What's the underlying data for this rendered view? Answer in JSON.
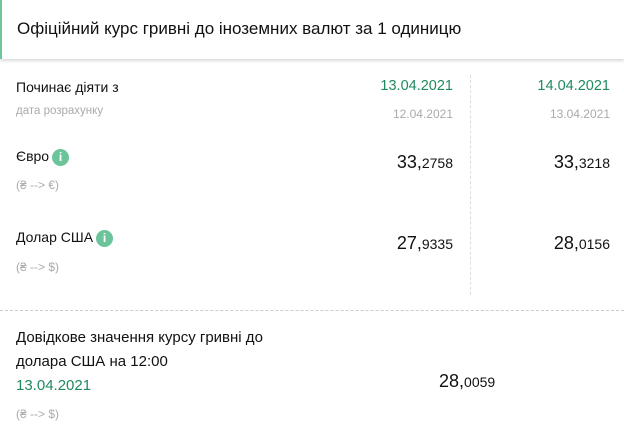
{
  "header": {
    "title": "Офіційний курс гривні до іноземних валют за 1 одиницю"
  },
  "table": {
    "start_label": "Починає діяти з",
    "calc_label": "дата розрахунку",
    "columns": [
      {
        "effective_date": "13.04.2021",
        "calc_date": "12.04.2021"
      },
      {
        "effective_date": "14.04.2021",
        "calc_date": "13.04.2021"
      }
    ],
    "rows": [
      {
        "name": "Євро",
        "direction": "(₴ --> €)",
        "info_icon": "info-icon",
        "values": [
          {
            "whole": "33,",
            "frac": "2758"
          },
          {
            "whole": "33,",
            "frac": "3218"
          }
        ]
      },
      {
        "name": "Долар США",
        "direction": "(₴ --> $)",
        "info_icon": "info-icon",
        "values": [
          {
            "whole": "27,",
            "frac": "9335"
          },
          {
            "whole": "28,",
            "frac": "0156"
          }
        ]
      }
    ]
  },
  "reference": {
    "line1": "Довідкове значення курсу гривні до",
    "line2": "долара США на 12:00",
    "date": "13.04.2021",
    "direction": "(₴ --> $)",
    "value": {
      "whole": "28,",
      "frac": "0059"
    }
  },
  "colors": {
    "accent": "#6cc59a",
    "date_green": "#1f8a5e"
  }
}
